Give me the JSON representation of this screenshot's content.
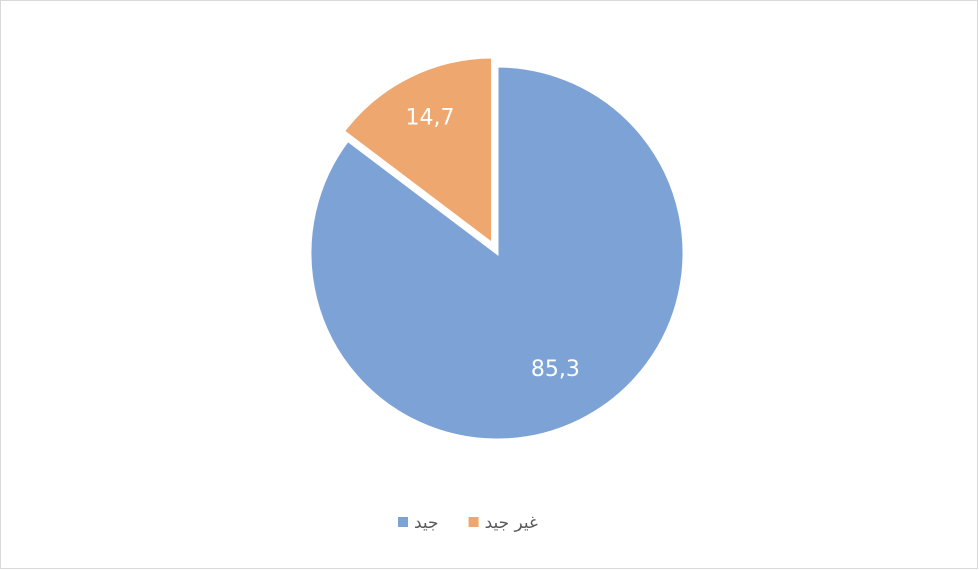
{
  "chart_data": {
    "type": "pie",
    "categories": [
      "جيد",
      "غير جيد"
    ],
    "values": [
      85.3,
      14.7
    ],
    "value_labels": [
      "85,3",
      "14,7"
    ],
    "colors": [
      "#7ca2d6",
      "#eda76f"
    ],
    "legend": "bottom"
  }
}
